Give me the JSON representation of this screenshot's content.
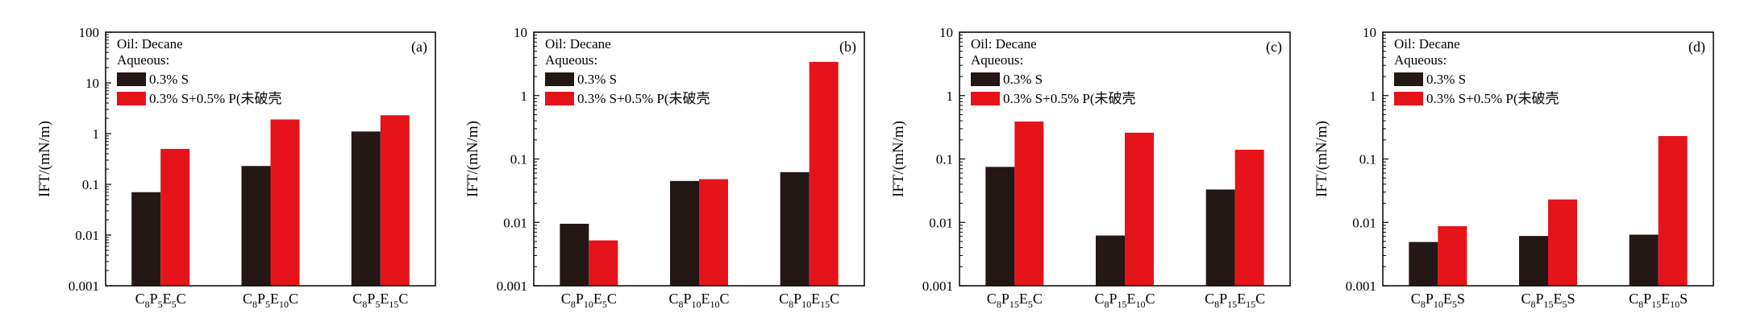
{
  "chart_data": [
    {
      "type": "bar",
      "panel_label": "(a)",
      "scale": "log",
      "ylabel": "IFT/(mN/m)",
      "ylim": [
        0.001,
        100
      ],
      "yticks": [
        "0.001",
        "0.01",
        "0.1",
        "1",
        "10",
        "100"
      ],
      "categories": [
        {
          "base": "C",
          "parts": [
            [
              "8",
              "P"
            ],
            [
              "5",
              "E"
            ],
            [
              "5",
              "C"
            ]
          ]
        },
        {
          "base": "C",
          "parts": [
            [
              "8",
              "P"
            ],
            [
              "5",
              "E"
            ],
            [
              "10",
              "C"
            ]
          ]
        },
        {
          "base": "C",
          "parts": [
            [
              "8",
              "P"
            ],
            [
              "5",
              "E"
            ],
            [
              "15",
              "C"
            ]
          ]
        }
      ],
      "legend_lines": [
        "Oil: Decane",
        "Aqueous:"
      ],
      "series": [
        {
          "name": "0.3% S",
          "color": "#231815",
          "values": [
            0.07,
            0.23,
            1.1
          ]
        },
        {
          "name": "0.3% S+0.5% P(未破壳",
          "color": "#e5141b",
          "values": [
            0.5,
            1.9,
            2.3
          ]
        }
      ]
    },
    {
      "type": "bar",
      "panel_label": "(b)",
      "scale": "log",
      "ylabel": "IFT/(mN/m)",
      "ylim": [
        0.001,
        10
      ],
      "yticks": [
        "0.001",
        "0.01",
        "0.1",
        "1",
        "10"
      ],
      "categories": [
        {
          "base": "C",
          "parts": [
            [
              "8",
              "P"
            ],
            [
              "10",
              "E"
            ],
            [
              "5",
              "C"
            ]
          ]
        },
        {
          "base": "C",
          "parts": [
            [
              "8",
              "P"
            ],
            [
              "10",
              "E"
            ],
            [
              "10",
              "C"
            ]
          ]
        },
        {
          "base": "C",
          "parts": [
            [
              "8",
              "P"
            ],
            [
              "10",
              "E"
            ],
            [
              "15",
              "C"
            ]
          ]
        }
      ],
      "legend_lines": [
        "Oil: Decane",
        "Aqueous:"
      ],
      "series": [
        {
          "name": "0.3% S",
          "color": "#231815",
          "values": [
            0.0095,
            0.045,
            0.062
          ]
        },
        {
          "name": "0.3% S+0.5% P(未破壳",
          "color": "#e5141b",
          "values": [
            0.0052,
            0.048,
            3.4
          ]
        }
      ]
    },
    {
      "type": "bar",
      "panel_label": "(c)",
      "scale": "log",
      "ylabel": "IFT/(mN/m)",
      "ylim": [
        0.001,
        10
      ],
      "yticks": [
        "0.001",
        "0.01",
        "0.1",
        "1",
        "10"
      ],
      "categories": [
        {
          "base": "C",
          "parts": [
            [
              "8",
              "P"
            ],
            [
              "15",
              "E"
            ],
            [
              "5",
              "C"
            ]
          ]
        },
        {
          "base": "C",
          "parts": [
            [
              "8",
              "P"
            ],
            [
              "15",
              "E"
            ],
            [
              "10",
              "C"
            ]
          ]
        },
        {
          "base": "C",
          "parts": [
            [
              "8",
              "P"
            ],
            [
              "15",
              "E"
            ],
            [
              "15",
              "C"
            ]
          ]
        }
      ],
      "legend_lines": [
        "Oil: Decane",
        "Aqueous:"
      ],
      "series": [
        {
          "name": "0.3% S",
          "color": "#231815",
          "values": [
            0.075,
            0.0062,
            0.033
          ]
        },
        {
          "name": "0.3% S+0.5% P(未破壳",
          "color": "#e5141b",
          "values": [
            0.39,
            0.26,
            0.14
          ]
        }
      ]
    },
    {
      "type": "bar",
      "panel_label": "(d)",
      "scale": "log",
      "ylabel": "IFT/(mN/m)",
      "ylim": [
        0.001,
        10
      ],
      "yticks": [
        "0.001",
        "0.01",
        "0.1",
        "1",
        "10"
      ],
      "categories": [
        {
          "base": "C",
          "parts": [
            [
              "8",
              "P"
            ],
            [
              "10",
              "E"
            ],
            [
              "5",
              "S"
            ]
          ]
        },
        {
          "base": "C",
          "parts": [
            [
              "8",
              "P"
            ],
            [
              "15",
              "E"
            ],
            [
              "5",
              "S"
            ]
          ]
        },
        {
          "base": "C",
          "parts": [
            [
              "8",
              "P"
            ],
            [
              "15",
              "E"
            ],
            [
              "10",
              "S"
            ]
          ]
        }
      ],
      "legend_lines": [
        "Oil: Decane",
        "Aqueous:"
      ],
      "series": [
        {
          "name": "0.3% S",
          "color": "#231815",
          "values": [
            0.0049,
            0.0061,
            0.0064
          ]
        },
        {
          "name": "0.3% S+0.5% P(未破壳",
          "color": "#e5141b",
          "values": [
            0.0087,
            0.023,
            0.23
          ]
        }
      ]
    }
  ]
}
